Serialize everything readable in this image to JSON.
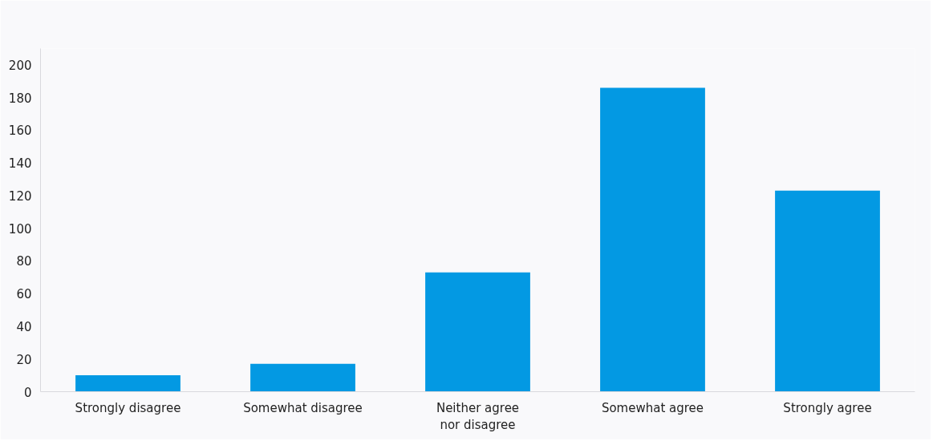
{
  "chart_data": {
    "type": "bar",
    "categories": [
      "Strongly disagree",
      "Somewhat disagree",
      "Neither agree nor disagree",
      "Somewhat agree",
      "Strongly agree"
    ],
    "values": [
      10,
      17,
      73,
      186,
      123
    ],
    "color": "#0399e3",
    "ylim": [
      0,
      210
    ],
    "yticks": [
      0,
      20,
      40,
      60,
      80,
      100,
      120,
      140,
      160,
      180,
      200
    ],
    "grid": false
  }
}
